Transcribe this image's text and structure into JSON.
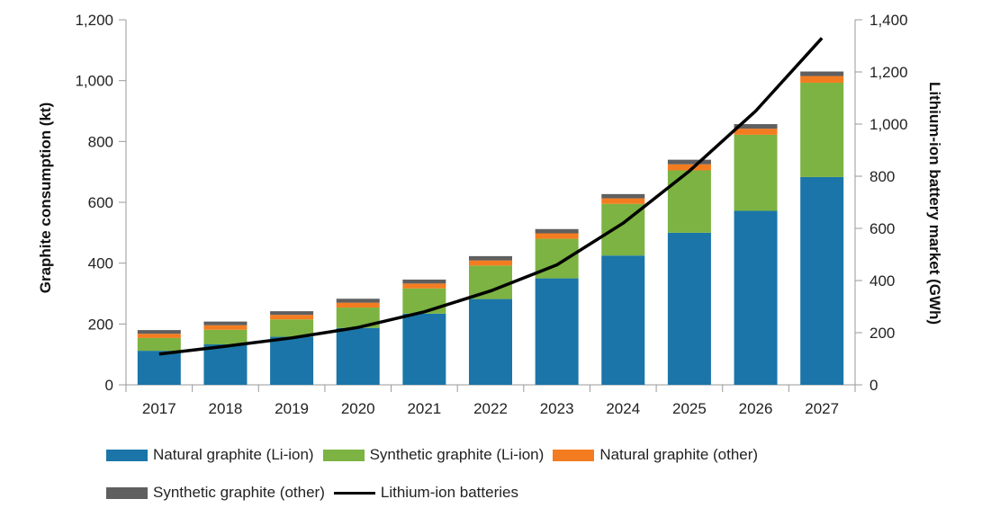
{
  "chart_data": {
    "type": "bar+line",
    "categories": [
      "2017",
      "2018",
      "2019",
      "2020",
      "2021",
      "2022",
      "2023",
      "2024",
      "2025",
      "2026",
      "2027"
    ],
    "stacked_series": [
      {
        "name": "Natural graphite (Li-ion)",
        "color": "#1b75a8",
        "values": [
          112,
          133,
          158,
          187,
          234,
          282,
          350,
          425,
          500,
          572,
          683
        ]
      },
      {
        "name": "Synthetic graphite (Li-ion)",
        "color": "#7cb342",
        "values": [
          42,
          48,
          57,
          67,
          83,
          110,
          130,
          170,
          205,
          250,
          310
        ]
      },
      {
        "name": "Natural graphite (other)",
        "color": "#f47c20",
        "values": [
          14,
          15,
          15,
          16,
          16,
          17,
          18,
          18,
          20,
          20,
          22
        ]
      },
      {
        "name": "Synthetic graphite (other)",
        "color": "#5f5f5f",
        "values": [
          12,
          12,
          12,
          13,
          13,
          14,
          14,
          14,
          15,
          15,
          15
        ]
      }
    ],
    "line_series": {
      "name": "Lithium-ion batteries",
      "color": "#000000",
      "axis": "right",
      "values": [
        118,
        148,
        180,
        220,
        280,
        360,
        460,
        620,
        820,
        1050,
        1330
      ]
    },
    "yleft": {
      "label": "Graphite consumption (kt)",
      "min": 0,
      "max": 1200,
      "ticks": [
        "0",
        "200",
        "400",
        "600",
        "800",
        "1,000",
        "1,200"
      ]
    },
    "yright": {
      "label": "Lithium-ion battery market (GWh)",
      "min": 0,
      "max": 1400,
      "ticks": [
        "0",
        "200",
        "400",
        "600",
        "800",
        "1,000",
        "1,200",
        "1,400"
      ]
    },
    "legend_position": "bottom"
  },
  "legend": {
    "natural_li": "Natural graphite (Li-ion)",
    "synthetic_li": "Synthetic graphite (Li-ion)",
    "natural_other": "Natural graphite (other)",
    "synthetic_other": "Synthetic graphite (other)",
    "li_batteries": "Lithium-ion batteries"
  },
  "colors": {
    "natural_li": "#1b75a8",
    "synthetic_li": "#7cb342",
    "natural_other": "#f47c20",
    "synthetic_other": "#5f5f5f",
    "line": "#000000"
  }
}
